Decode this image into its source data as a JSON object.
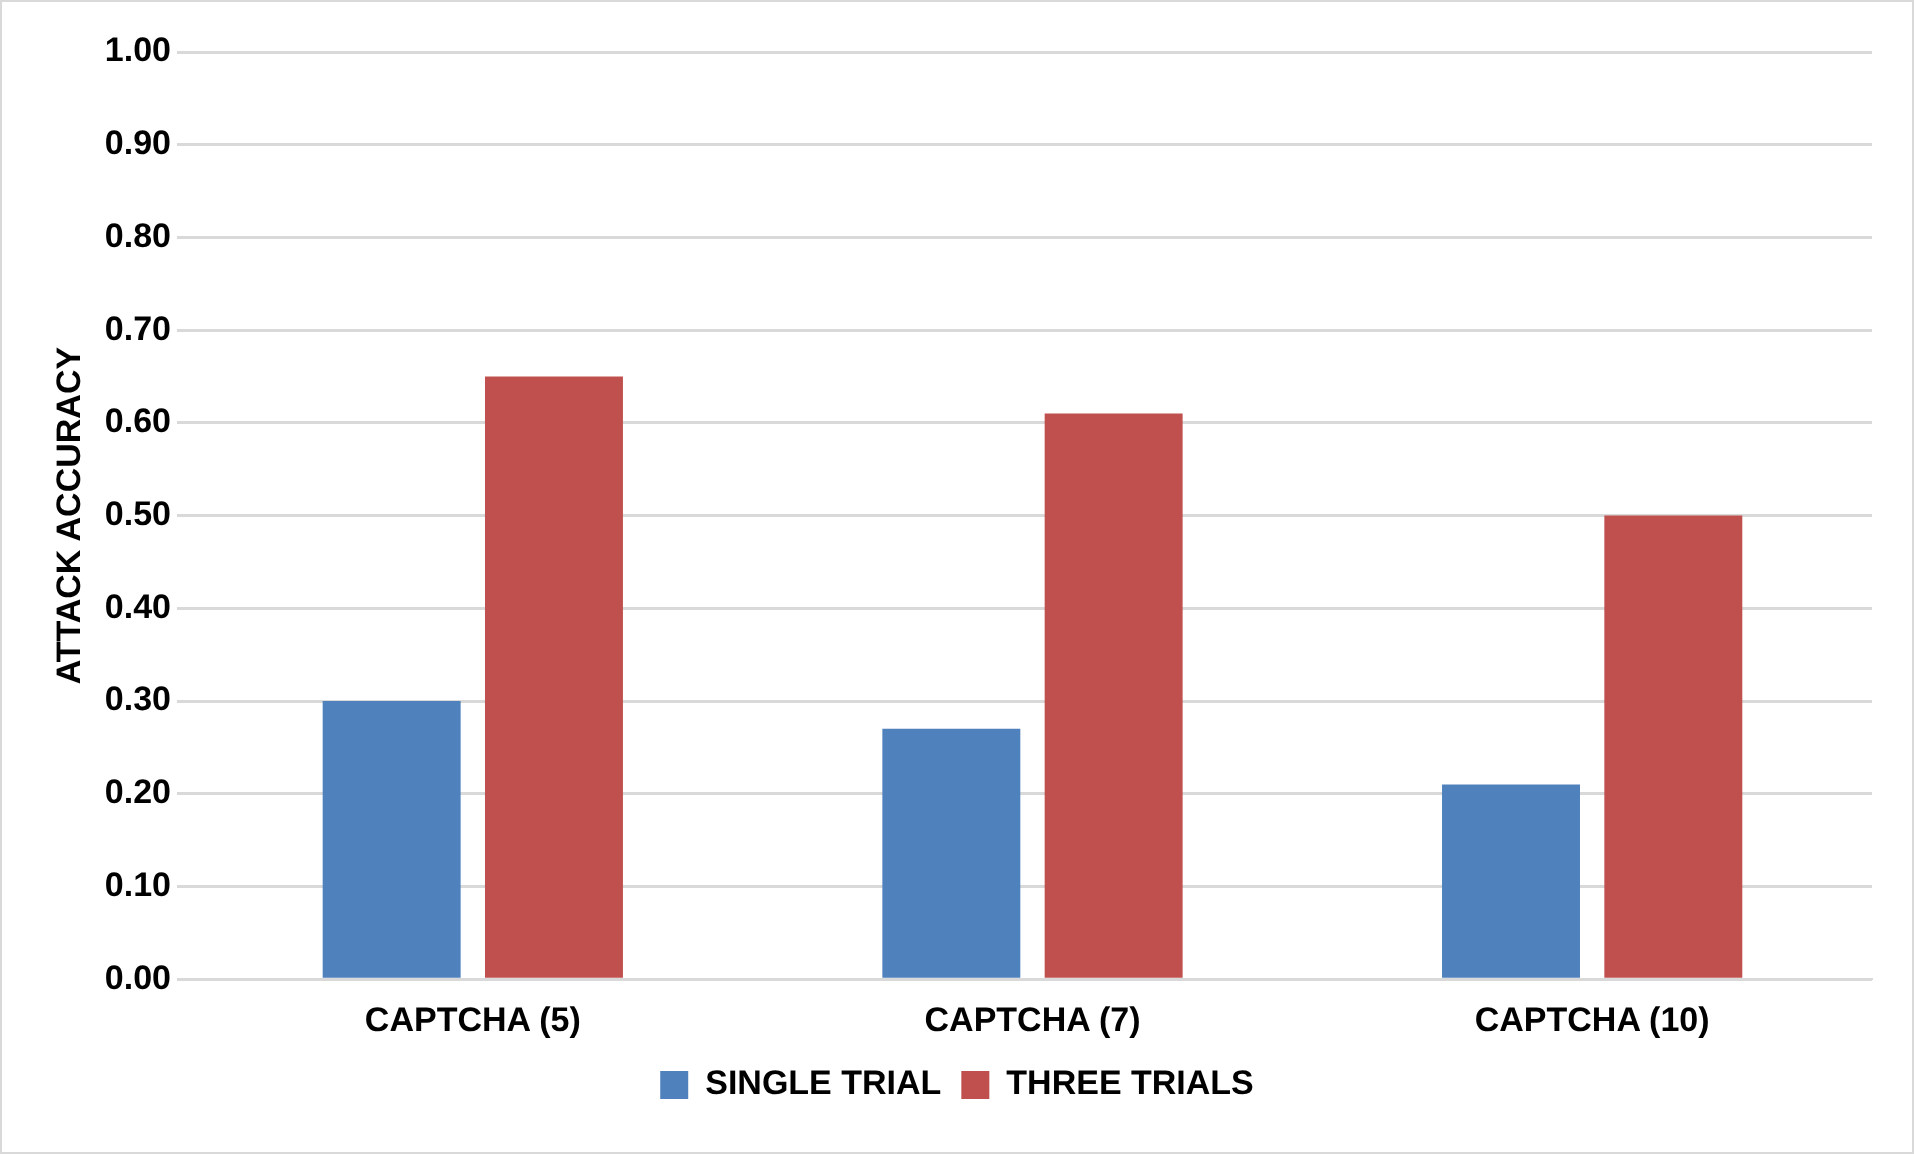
{
  "chart_data": {
    "type": "bar",
    "ylabel": "ATTACK ACCURACY",
    "categories": [
      "CAPTCHA (5)",
      "CAPTCHA (7)",
      "CAPTCHA (10)"
    ],
    "series": [
      {
        "name": "SINGLE TRIAL",
        "color": "#4f81bd",
        "values": [
          0.3,
          0.27,
          0.21
        ]
      },
      {
        "name": "THREE TRIALS",
        "color": "#c0504d",
        "values": [
          0.65,
          0.61,
          0.5
        ]
      }
    ],
    "ylim": [
      0,
      1
    ],
    "yticks": [
      {
        "value": 0,
        "label": "0.00"
      },
      {
        "value": 0.1,
        "label": "0.10"
      },
      {
        "value": 0.2,
        "label": "0.20"
      },
      {
        "value": 0.3,
        "label": "0.30"
      },
      {
        "value": 0.4,
        "label": "0.40"
      },
      {
        "value": 0.5,
        "label": "0.50"
      },
      {
        "value": 0.6,
        "label": "0.60"
      },
      {
        "value": 0.7,
        "label": "0.70"
      },
      {
        "value": 0.8,
        "label": "0.80"
      },
      {
        "value": 0.9,
        "label": "0.90"
      },
      {
        "value": 1,
        "label": "1.00"
      }
    ],
    "grid": "y",
    "legend": "bottom"
  }
}
